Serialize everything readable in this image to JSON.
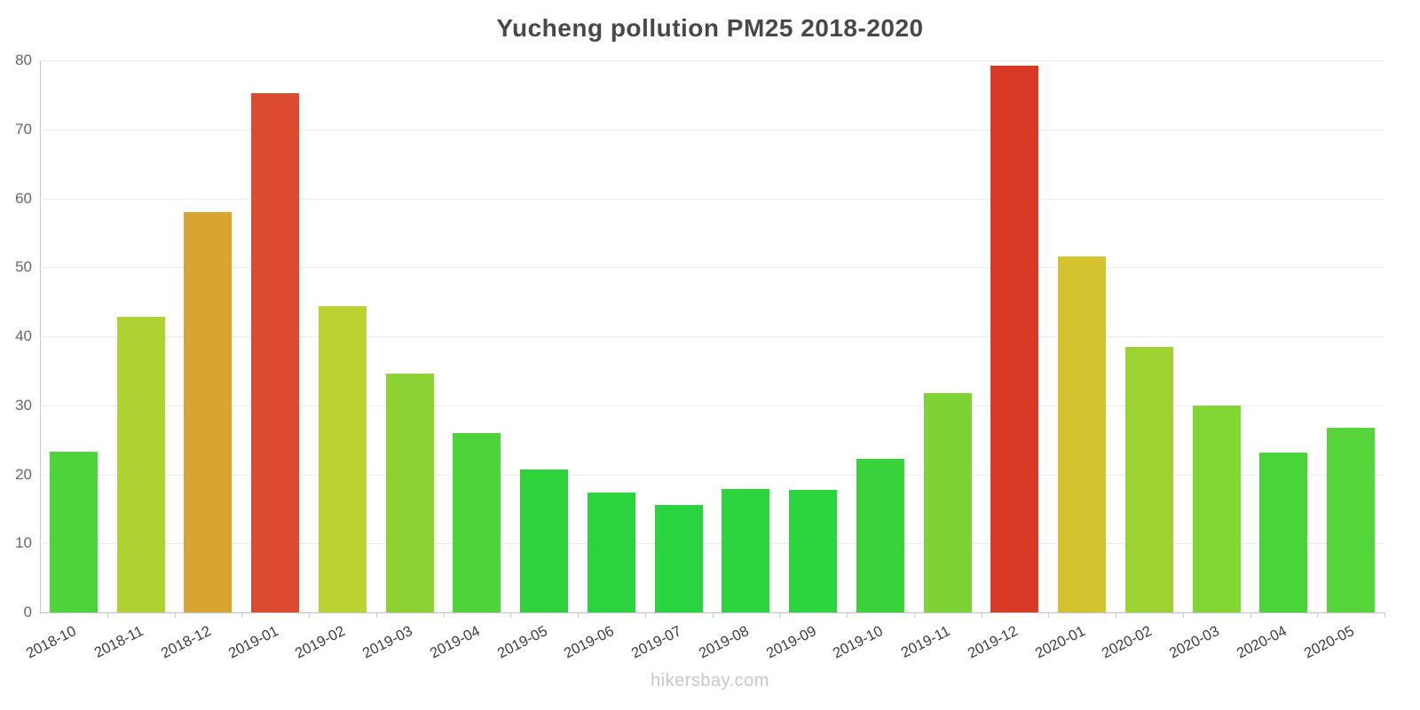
{
  "chart_data": {
    "type": "bar",
    "title": "Yucheng pollution PM25 2018-2020",
    "xlabel": "",
    "ylabel": "",
    "ylim": [
      0,
      80
    ],
    "yticks": [
      0,
      10,
      20,
      30,
      40,
      50,
      60,
      70,
      80
    ],
    "grid": true,
    "legend": "none",
    "categories": [
      "2018-10",
      "2018-11",
      "2018-12",
      "2019-01",
      "2019-02",
      "2019-03",
      "2019-04",
      "2019-05",
      "2019-06",
      "2019-07",
      "2019-08",
      "2019-09",
      "2019-10",
      "2019-11",
      "2019-12",
      "2020-01",
      "2020-02",
      "2020-03",
      "2020-04",
      "2020-05"
    ],
    "values": [
      23.3,
      42.8,
      58.0,
      75.3,
      44.4,
      34.6,
      26.0,
      20.7,
      17.3,
      15.5,
      17.9,
      17.8,
      22.2,
      31.8,
      79.2,
      51.6,
      38.4,
      30.0,
      23.2,
      26.8
    ],
    "bar_colors": [
      "#4cd43a",
      "#aed234",
      "#d8a62f",
      "#dc4b30",
      "#bcd233",
      "#8dd233",
      "#4ed43a",
      "#30d23c",
      "#2bd43d",
      "#2ad43e",
      "#2cd43d",
      "#2cd43d",
      "#3ad23b",
      "#7ed334",
      "#d93a28",
      "#d2c32f",
      "#9ed233",
      "#82d633",
      "#49d53a",
      "#55d53a"
    ]
  },
  "footer": {
    "watermark": "hikersbay.com"
  },
  "colors": {
    "background": "#ffffff",
    "title": "#47474d",
    "grid": "#ececec",
    "axis": "#c0c0c0",
    "y_tick_label": "#66666b",
    "x_tick_label": "#3d3d42",
    "watermark": "#ccc5cc"
  }
}
